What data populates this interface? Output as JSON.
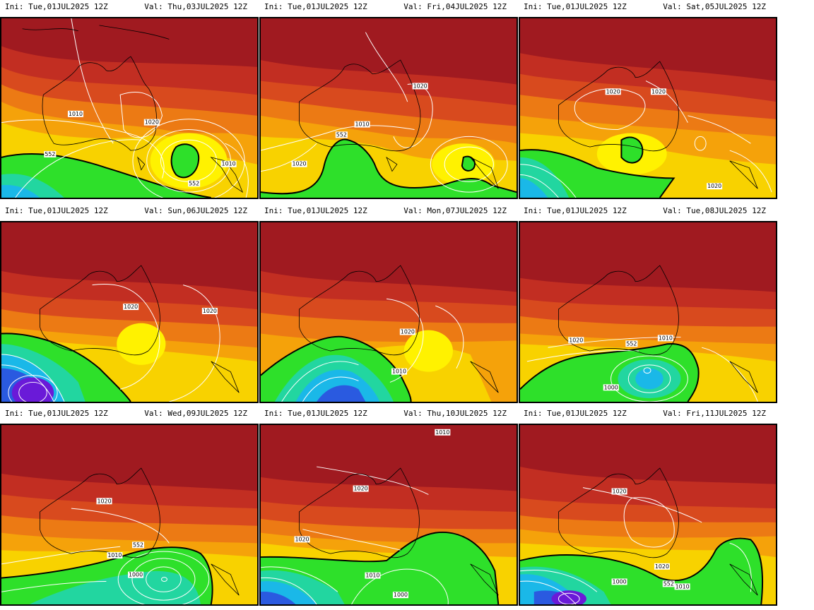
{
  "panels": [
    {
      "ini": "Ini: Tue,01JUL2025 12Z",
      "val": "Val: Thu,03JUL2025 12Z",
      "labels": [
        "1010",
        "1020",
        "552",
        "552",
        "1010"
      ]
    },
    {
      "ini": "Ini: Tue,01JUL2025 12Z",
      "val": "Val: Fri,04JUL2025 12Z",
      "labels": [
        "1020",
        "1010",
        "552",
        "1020"
      ]
    },
    {
      "ini": "Ini: Tue,01JUL2025 12Z",
      "val": "Val: Sat,05JUL2025 12Z",
      "labels": [
        "1020",
        "1020",
        "1020"
      ]
    },
    {
      "ini": "Ini: Tue,01JUL2025 12Z",
      "val": "Val: Sun,06JUL2025 12Z",
      "labels": [
        "1020",
        "1020"
      ]
    },
    {
      "ini": "Ini: Tue,01JUL2025 12Z",
      "val": "Val: Mon,07JUL2025 12Z",
      "labels": [
        "1020",
        "1010"
      ]
    },
    {
      "ini": "Ini: Tue,01JUL2025 12Z",
      "val": "Val: Tue,08JUL2025 12Z",
      "labels": [
        "1020",
        "552",
        "1010",
        "1000"
      ]
    },
    {
      "ini": "Ini: Tue,01JUL2025 12Z",
      "val": "Val: Wed,09JUL2025 12Z",
      "labels": [
        "1020",
        "552",
        "1010",
        "1000"
      ]
    },
    {
      "ini": "Ini: Tue,01JUL2025 12Z",
      "val": "Val: Thu,10JUL2025 12Z",
      "labels": [
        "1010",
        "1020",
        "1020",
        "1010",
        "1000"
      ]
    },
    {
      "ini": "Ini: Tue,01JUL2025 12Z",
      "val": "Val: Fri,11JUL2025 12Z",
      "labels": [
        "1020",
        "1020",
        "1000",
        "552",
        "1010"
      ]
    }
  ],
  "colors": {
    "deep_red": "#a01a20",
    "red": "#c22e22",
    "red_orange": "#d84a1e",
    "orange": "#ec7a14",
    "light_orange": "#f5a20a",
    "yellow": "#f8d200",
    "bright_yellow": "#fff200",
    "green": "#2ee02a",
    "teal": "#22d6a0",
    "cyan": "#1ab8e8",
    "blue": "#2a5ae0",
    "purple": "#6a1ad8",
    "contour": "#ffffff",
    "coastline": "#000000",
    "line_552": "#000000"
  }
}
